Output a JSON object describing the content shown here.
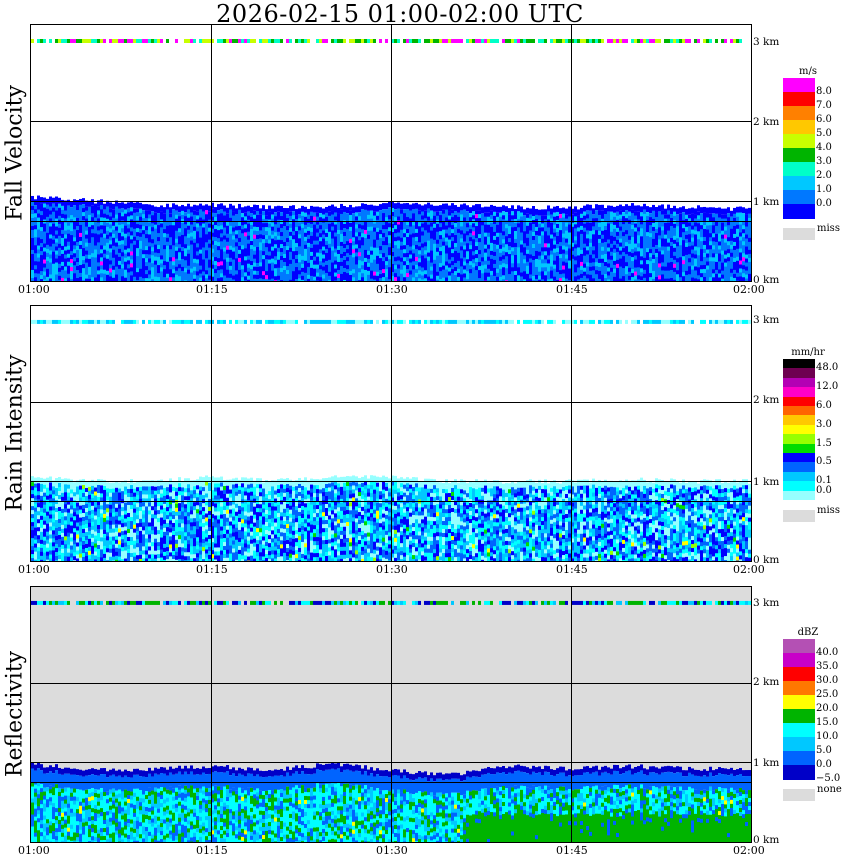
{
  "title": "2026-02-15   01:00-02:00 UTC",
  "time_ticks": [
    "01:00",
    "01:15",
    "01:30",
    "01:45",
    "02:00"
  ],
  "height_ticks": [
    "3 km",
    "2 km",
    "1 km",
    "0 km"
  ],
  "colors": {
    "missing": "#dcdcdc",
    "grid": "#000000"
  },
  "panels": [
    {
      "label": "Fall Velocity",
      "legend": {
        "unit": "m/s",
        "levels": [
          "8.0",
          "7.0",
          "6.0",
          "5.0",
          "4.0",
          "3.0",
          "2.0",
          "1.0",
          "0.0"
        ],
        "colors": [
          "#ff00ff",
          "#ff0000",
          "#ff8000",
          "#ffc800",
          "#c8ff00",
          "#00b400",
          "#00ffc8",
          "#00c8ff",
          "#0078ff",
          "#0000ff"
        ],
        "missing_label": "miss"
      }
    },
    {
      "label": "Rain Intensity",
      "legend": {
        "unit": "mm/hr",
        "levels": [
          "48.0",
          "",
          "12.0",
          "",
          "6.0",
          "",
          "3.0",
          "",
          "1.5",
          "",
          "0.5",
          "",
          "0.1",
          "0.0"
        ],
        "colors": [
          "#000000",
          "#6e0050",
          "#b400b4",
          "#ff00c8",
          "#ff0000",
          "#ff6400",
          "#ffc800",
          "#ffff00",
          "#96ff00",
          "#00dc00",
          "#0000ff",
          "#0064ff",
          "#00c8ff",
          "#00ffff",
          "#96ffff"
        ],
        "missing_label": "miss"
      }
    },
    {
      "label": "Reflectivity",
      "legend": {
        "unit": "dBZ",
        "levels": [
          "40.0",
          "35.0",
          "30.0",
          "25.0",
          "20.0",
          "15.0",
          "10.0",
          "5.0",
          "0.0",
          "−5.0"
        ],
        "colors": [
          "#b450b4",
          "#c800c8",
          "#ff0000",
          "#ff7800",
          "#ffff00",
          "#00b400",
          "#00ffff",
          "#00c8ff",
          "#0064ff",
          "#0000c8"
        ],
        "missing_label": "none"
      }
    }
  ],
  "chart_data": [
    {
      "type": "heatmap",
      "title": "Fall Velocity",
      "colorbar_unit": "m/s",
      "x_ticks": [
        "01:00",
        "01:15",
        "01:30",
        "01:45",
        "02:00"
      ],
      "y_ticks": [
        "0 km",
        "1 km",
        "2 km",
        "3 km"
      ],
      "ylim_km": [
        0,
        3.2
      ],
      "echo_top_km": [
        1.05,
        1.0,
        0.95,
        0.95,
        0.92,
        0.93,
        0.98,
        0.95,
        0.92,
        0.92,
        0.95,
        0.92,
        0.9
      ],
      "dominant_range_m_s": [
        0.0,
        2.0
      ],
      "thin_layer_km": 3.0,
      "thin_layer_value_m_s": 4.5,
      "grid": true
    },
    {
      "type": "heatmap",
      "title": "Rain Intensity",
      "colorbar_unit": "mm/hr",
      "x_ticks": [
        "01:00",
        "01:15",
        "01:30",
        "01:45",
        "02:00"
      ],
      "y_ticks": [
        "0 km",
        "1 km",
        "2 km",
        "3 km"
      ],
      "ylim_km": [
        0,
        3.2
      ],
      "echo_top_km": [
        1.05,
        1.0,
        1.0,
        1.05,
        1.0,
        1.05,
        1.05,
        1.0,
        1.0,
        1.0,
        1.02,
        1.0,
        1.0
      ],
      "dominant_range_mm_hr": [
        0.0,
        0.5
      ],
      "thin_layer_km": 3.0,
      "thin_layer_value_mm_hr": 0.1,
      "grid": true
    },
    {
      "type": "heatmap",
      "title": "Reflectivity",
      "colorbar_unit": "dBZ",
      "x_ticks": [
        "01:00",
        "01:15",
        "01:30",
        "01:45",
        "02:00"
      ],
      "y_ticks": [
        "0 km",
        "1 km",
        "2 km",
        "3 km"
      ],
      "ylim_km": [
        0,
        3.2
      ],
      "echo_top_km": [
        0.98,
        0.9,
        0.92,
        0.95,
        0.9,
        0.98,
        0.9,
        0.85,
        0.95,
        0.92,
        0.95,
        0.92,
        0.92
      ],
      "dominant_range_dBZ": [
        0.0,
        15.0
      ],
      "thin_layer_km": 3.0,
      "thin_layer_value_dBZ": 10.0,
      "background": "none",
      "grid": true
    }
  ]
}
